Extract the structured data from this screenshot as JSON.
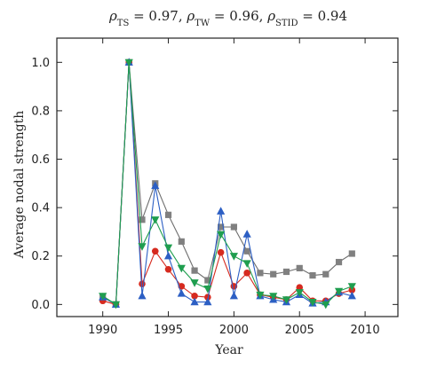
{
  "chart_data": {
    "type": "line",
    "title": {
      "parts": [
        {
          "text": "ρ",
          "style": "italic"
        },
        {
          "text": "TS",
          "style": "sub"
        },
        {
          "text": " = 0.97, ",
          "style": "normal"
        },
        {
          "text": "ρ",
          "style": "italic"
        },
        {
          "text": "TW",
          "style": "sub"
        },
        {
          "text": " = 0.96, ",
          "style": "normal"
        },
        {
          "text": "ρ",
          "style": "italic"
        },
        {
          "text": "STID",
          "style": "sub"
        },
        {
          "text": " = 0.94",
          "style": "normal"
        }
      ]
    },
    "xlabel": "Year",
    "ylabel": "Average nodal strength",
    "xlim": [
      1986.5,
      2012.5
    ],
    "ylim": [
      -0.05,
      1.1
    ],
    "xticks": [
      1990,
      1995,
      2000,
      2005,
      2010
    ],
    "yticks": [
      0.0,
      0.2,
      0.4,
      0.6,
      0.8,
      1.0
    ],
    "ytick_labels": [
      "0.0",
      "0.2",
      "0.4",
      "0.6",
      "0.8",
      "1.0"
    ],
    "grid": false,
    "legend": false,
    "series": [
      {
        "marker": "square",
        "color": "#808080",
        "line_color": "#6e6e6e",
        "x": [
          1990,
          1991,
          1992,
          1993,
          1994,
          1995,
          1996,
          1997,
          1998,
          1999,
          2000,
          2001,
          2002,
          2003,
          2004,
          2005,
          2006,
          2007,
          2008,
          2009
        ],
        "y": [
          0.03,
          0.0,
          1.0,
          0.35,
          0.5,
          0.37,
          0.26,
          0.14,
          0.1,
          0.32,
          0.32,
          0.22,
          0.13,
          0.125,
          0.135,
          0.15,
          0.12,
          0.125,
          0.175,
          0.21
        ]
      },
      {
        "marker": "circle",
        "color": "#d62a1f",
        "line_color": "#d62a1f",
        "x": [
          1990,
          1991,
          1992,
          1993,
          1994,
          1995,
          1996,
          1997,
          1998,
          1999,
          2000,
          2001,
          2002,
          2003,
          2004,
          2005,
          2006,
          2007,
          2008,
          2009
        ],
        "y": [
          0.015,
          0.0,
          1.0,
          0.085,
          0.22,
          0.145,
          0.075,
          0.035,
          0.03,
          0.215,
          0.075,
          0.13,
          0.04,
          0.03,
          0.02,
          0.07,
          0.015,
          0.015,
          0.045,
          0.06
        ]
      },
      {
        "marker": "triangle-up",
        "color": "#2c5fc4",
        "line_color": "#2c5fc4",
        "x": [
          1990,
          1991,
          1992,
          1993,
          1994,
          1995,
          1996,
          1997,
          1998,
          1999,
          2000,
          2001,
          2002,
          2003,
          2004,
          2005,
          2006,
          2007,
          2008,
          2009
        ],
        "y": [
          0.03,
          0.0,
          1.0,
          0.035,
          0.49,
          0.2,
          0.045,
          0.01,
          0.01,
          0.385,
          0.035,
          0.29,
          0.035,
          0.02,
          0.01,
          0.04,
          0.005,
          0.01,
          0.05,
          0.035
        ]
      },
      {
        "marker": "triangle-down",
        "color": "#1f9e4f",
        "line_color": "#1f9e4f",
        "x": [
          1990,
          1991,
          1992,
          1993,
          1994,
          1995,
          1996,
          1997,
          1998,
          1999,
          2000,
          2001,
          2002,
          2003,
          2004,
          2005,
          2006,
          2007,
          2008,
          2009
        ],
        "y": [
          0.035,
          0.0,
          1.0,
          0.24,
          0.35,
          0.235,
          0.15,
          0.09,
          0.065,
          0.29,
          0.2,
          0.17,
          0.04,
          0.035,
          0.02,
          0.05,
          0.01,
          0.0,
          0.055,
          0.075
        ]
      }
    ]
  }
}
